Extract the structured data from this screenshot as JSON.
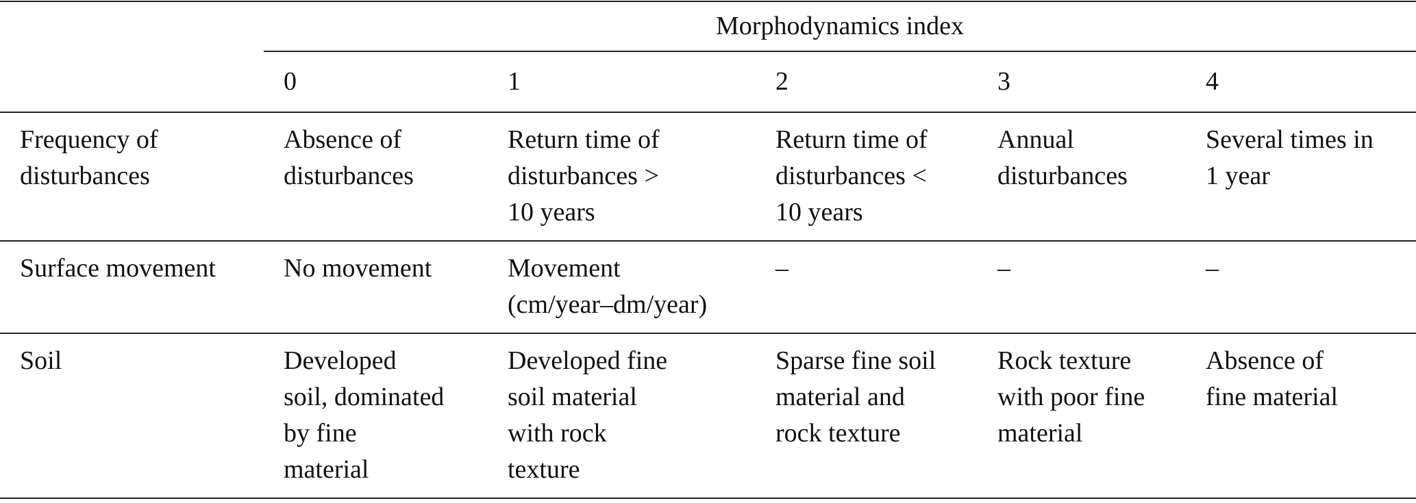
{
  "table": {
    "title": "Morphodynamics index",
    "columns": [
      "0",
      "1",
      "2",
      "3",
      "4"
    ],
    "rows": [
      {
        "label": [
          "Frequency of",
          "disturbances"
        ],
        "cells": [
          [
            "Absence of",
            "disturbances"
          ],
          [
            "Return time of",
            "disturbances >",
            "10 years"
          ],
          [
            "Return time of",
            "disturbances <",
            "10 years"
          ],
          [
            "Annual",
            "disturbances"
          ],
          [
            "Several times in",
            "1 year"
          ]
        ]
      },
      {
        "label": [
          "Surface movement"
        ],
        "cells": [
          [
            "No movement"
          ],
          [
            "Movement",
            "(cm/year–dm/year)"
          ],
          [
            "–"
          ],
          [
            "–"
          ],
          [
            "–"
          ]
        ]
      },
      {
        "label": [
          "Soil"
        ],
        "cells": [
          [
            "Developed",
            "soil, dominated",
            "by fine",
            "material"
          ],
          [
            "Developed fine",
            "soil material",
            "with rock",
            "texture"
          ],
          [
            "Sparse fine soil",
            "material and",
            "rock texture"
          ],
          [
            "Rock texture",
            "with poor fine",
            "material"
          ],
          [
            "Absence of",
            "fine material"
          ]
        ]
      }
    ]
  }
}
